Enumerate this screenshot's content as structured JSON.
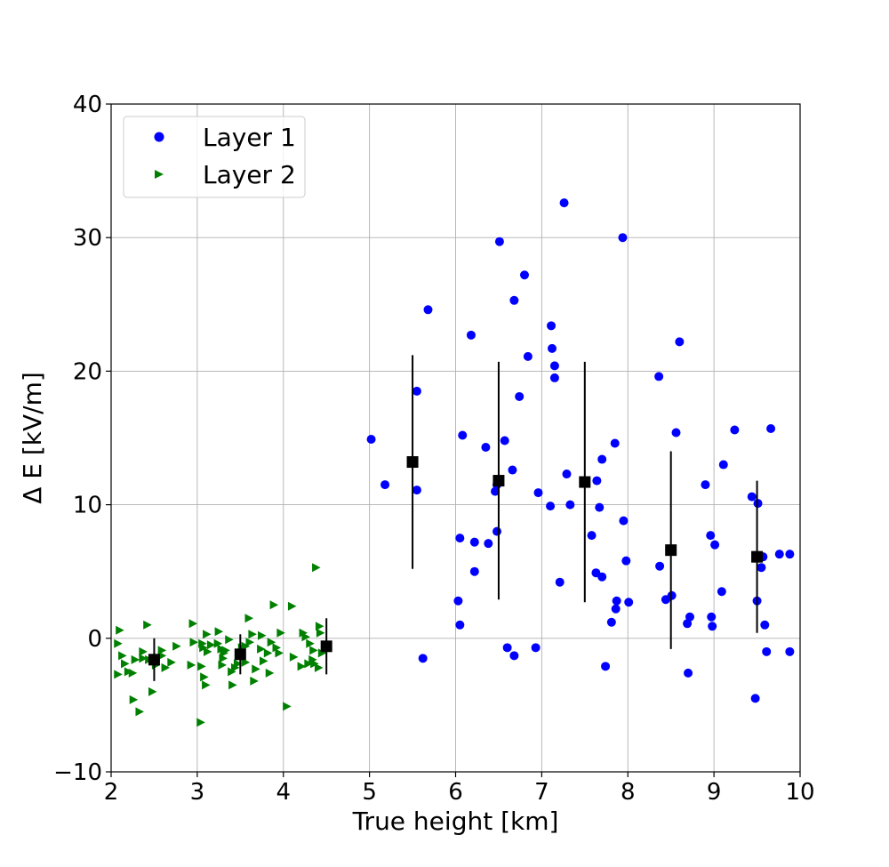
{
  "chart_data": {
    "type": "scatter",
    "title": "",
    "xlabel": "True height [km]",
    "ylabel": "Δ E [kV/m]",
    "xlim": [
      2,
      10
    ],
    "ylim": [
      -10,
      40
    ],
    "xticks": [
      2,
      3,
      4,
      5,
      6,
      7,
      8,
      9,
      10
    ],
    "yticks": [
      -10,
      0,
      10,
      20,
      30,
      40
    ],
    "xtick_labels": [
      "2",
      "3",
      "4",
      "5",
      "6",
      "7",
      "8",
      "9",
      "10"
    ],
    "ytick_labels": [
      "−10",
      "0",
      "10",
      "20",
      "30",
      "40"
    ],
    "grid": true,
    "legend_position": "top-left",
    "series": [
      {
        "name": "Layer 1",
        "marker": "circle",
        "color": "#0000ff",
        "points": [
          [
            5.02,
            14.9
          ],
          [
            5.18,
            11.5
          ],
          [
            5.55,
            18.5
          ],
          [
            5.55,
            11.1
          ],
          [
            5.62,
            -1.5
          ],
          [
            5.68,
            24.6
          ],
          [
            6.03,
            2.8
          ],
          [
            6.05,
            7.5
          ],
          [
            6.05,
            1.0
          ],
          [
            6.08,
            15.2
          ],
          [
            6.18,
            22.7
          ],
          [
            6.22,
            7.2
          ],
          [
            6.22,
            5.0
          ],
          [
            6.35,
            14.3
          ],
          [
            6.38,
            7.1
          ],
          [
            6.46,
            11.0
          ],
          [
            6.48,
            11.5
          ],
          [
            6.48,
            8.0
          ],
          [
            6.51,
            29.7
          ],
          [
            6.57,
            14.8
          ],
          [
            6.6,
            -0.7
          ],
          [
            6.66,
            12.6
          ],
          [
            6.68,
            25.3
          ],
          [
            6.68,
            -1.3
          ],
          [
            6.74,
            18.1
          ],
          [
            6.8,
            27.2
          ],
          [
            6.84,
            21.1
          ],
          [
            6.93,
            -0.7
          ],
          [
            6.96,
            10.9
          ],
          [
            7.1,
            9.9
          ],
          [
            7.11,
            23.4
          ],
          [
            7.12,
            21.7
          ],
          [
            7.15,
            20.4
          ],
          [
            7.15,
            19.5
          ],
          [
            7.21,
            4.2
          ],
          [
            7.26,
            32.6
          ],
          [
            7.29,
            12.3
          ],
          [
            7.33,
            10.0
          ],
          [
            7.58,
            7.7
          ],
          [
            7.63,
            4.9
          ],
          [
            7.64,
            11.8
          ],
          [
            7.67,
            9.8
          ],
          [
            7.7,
            13.4
          ],
          [
            7.7,
            4.6
          ],
          [
            7.74,
            -2.1
          ],
          [
            7.81,
            1.2
          ],
          [
            7.85,
            14.6
          ],
          [
            7.86,
            2.2
          ],
          [
            7.87,
            2.8
          ],
          [
            7.94,
            30.0
          ],
          [
            7.95,
            8.8
          ],
          [
            7.98,
            5.8
          ],
          [
            8.01,
            2.7
          ],
          [
            8.36,
            19.6
          ],
          [
            8.37,
            5.4
          ],
          [
            8.44,
            2.9
          ],
          [
            8.51,
            3.2
          ],
          [
            8.56,
            15.4
          ],
          [
            8.6,
            22.2
          ],
          [
            8.69,
            1.1
          ],
          [
            8.7,
            -2.6
          ],
          [
            8.72,
            1.6
          ],
          [
            8.9,
            11.5
          ],
          [
            8.96,
            7.7
          ],
          [
            8.97,
            1.6
          ],
          [
            8.98,
            0.9
          ],
          [
            9.01,
            7.0
          ],
          [
            9.09,
            3.5
          ],
          [
            9.11,
            13.0
          ],
          [
            9.24,
            15.6
          ],
          [
            9.44,
            10.6
          ],
          [
            9.48,
            -4.5
          ],
          [
            9.5,
            2.8
          ],
          [
            9.51,
            10.1
          ],
          [
            9.55,
            5.3
          ],
          [
            9.57,
            6.1
          ],
          [
            9.59,
            1.0
          ],
          [
            9.61,
            -1.0
          ],
          [
            9.66,
            15.7
          ],
          [
            9.76,
            6.3
          ],
          [
            9.88,
            6.3
          ],
          [
            9.88,
            -1.0
          ]
        ]
      },
      {
        "name": "Layer 2",
        "marker": "triangle-right",
        "color": "#008000",
        "points": [
          [
            2.08,
            -0.4
          ],
          [
            2.08,
            -2.7
          ],
          [
            2.1,
            0.6
          ],
          [
            2.13,
            -1.3
          ],
          [
            2.16,
            -1.9
          ],
          [
            2.2,
            -2.5
          ],
          [
            2.25,
            -2.6
          ],
          [
            2.26,
            -4.6
          ],
          [
            2.28,
            -1.6
          ],
          [
            2.33,
            -5.5
          ],
          [
            2.37,
            -1.5
          ],
          [
            2.37,
            -1.0
          ],
          [
            2.42,
            1.0
          ],
          [
            2.44,
            -1.6
          ],
          [
            2.48,
            -4.0
          ],
          [
            2.52,
            -2.0
          ],
          [
            2.59,
            -0.9
          ],
          [
            2.59,
            -1.3
          ],
          [
            2.63,
            -2.2
          ],
          [
            2.7,
            -1.8
          ],
          [
            2.76,
            -0.6
          ],
          [
            2.93,
            -2.0
          ],
          [
            2.95,
            1.1
          ],
          [
            2.96,
            -0.3
          ],
          [
            3.04,
            -6.3
          ],
          [
            3.05,
            -2.1
          ],
          [
            3.06,
            -0.4
          ],
          [
            3.07,
            -0.7
          ],
          [
            3.08,
            -2.9
          ],
          [
            3.1,
            -3.5
          ],
          [
            3.11,
            0.3
          ],
          [
            3.12,
            -1.0
          ],
          [
            3.16,
            -0.5
          ],
          [
            3.24,
            -0.4
          ],
          [
            3.25,
            0.5
          ],
          [
            3.28,
            -0.8
          ],
          [
            3.29,
            -2.0
          ],
          [
            3.3,
            -1.5
          ],
          [
            3.31,
            -1.1
          ],
          [
            3.33,
            -0.9
          ],
          [
            3.37,
            -0.1
          ],
          [
            3.4,
            -2.5
          ],
          [
            3.41,
            -3.5
          ],
          [
            3.44,
            -2.2
          ],
          [
            3.47,
            -1.9
          ],
          [
            3.52,
            -0.7
          ],
          [
            3.56,
            -0.6
          ],
          [
            3.56,
            -1.8
          ],
          [
            3.6,
            1.5
          ],
          [
            3.61,
            -0.3
          ],
          [
            3.64,
            0.3
          ],
          [
            3.66,
            -3.2
          ],
          [
            3.68,
            -2.3
          ],
          [
            3.74,
            -0.8
          ],
          [
            3.75,
            0.2
          ],
          [
            3.77,
            -1.7
          ],
          [
            3.82,
            -1.1
          ],
          [
            3.84,
            -2.6
          ],
          [
            3.86,
            -0.3
          ],
          [
            3.89,
            2.5
          ],
          [
            3.92,
            -0.7
          ],
          [
            3.95,
            -1.1
          ],
          [
            3.97,
            0.4
          ],
          [
            4.04,
            -5.1
          ],
          [
            4.1,
            2.4
          ],
          [
            4.12,
            -1.4
          ],
          [
            4.21,
            -2.1
          ],
          [
            4.23,
            0.4
          ],
          [
            4.26,
            0.1
          ],
          [
            4.29,
            -1.9
          ],
          [
            4.31,
            -0.4
          ],
          [
            4.34,
            -1.6
          ],
          [
            4.35,
            -0.9
          ],
          [
            4.36,
            -1.9
          ],
          [
            4.38,
            5.3
          ],
          [
            4.41,
            -2.2
          ],
          [
            4.42,
            0.9
          ],
          [
            4.43,
            0.4
          ],
          [
            4.45,
            -1.1
          ]
        ]
      },
      {
        "name": "",
        "marker": "square",
        "color": "#000000",
        "points": [
          [
            2.5,
            -1.6
          ],
          [
            3.5,
            -1.2
          ],
          [
            4.5,
            -0.6
          ],
          [
            5.5,
            13.2
          ],
          [
            6.5,
            11.8
          ],
          [
            7.5,
            11.7
          ],
          [
            8.5,
            6.6
          ],
          [
            9.5,
            6.1
          ]
        ],
        "error": [
          1.6,
          1.5,
          2.1,
          8.0,
          8.9,
          9.0,
          7.4,
          5.7
        ]
      }
    ]
  }
}
